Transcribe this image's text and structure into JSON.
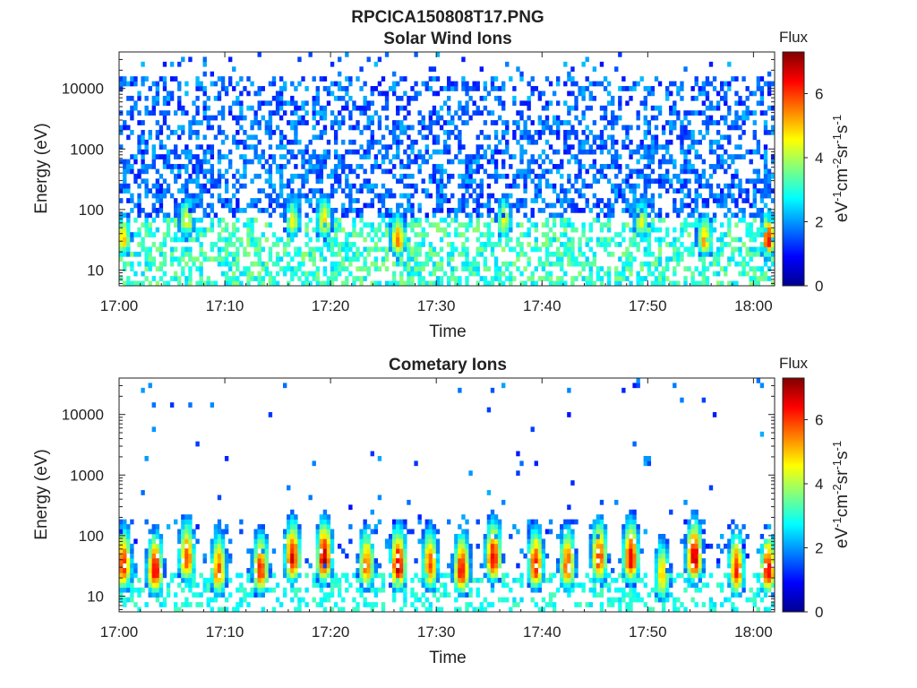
{
  "figure_title": "RPCICA150808T17.PNG",
  "chart_data": [
    {
      "type": "heatmap",
      "title": "Solar Wind Ions",
      "xlabel": "Time",
      "ylabel": "Energy (eV)",
      "x_range": [
        "17:00",
        "18:02"
      ],
      "x_ticks": [
        "17:00",
        "17:10",
        "17:20",
        "17:30",
        "17:40",
        "17:50",
        "18:00"
      ],
      "y_scale": "log",
      "y_range": [
        5.5,
        40000
      ],
      "y_ticks": [
        "10",
        "100",
        "1000",
        "10000"
      ],
      "colorbar": {
        "title": "Flux",
        "label": "eV-1cm-2sr-1s-1",
        "range": [
          0,
          7.3
        ],
        "ticks": [
          "0",
          "2",
          "4",
          "6"
        ]
      },
      "colormap": "jet",
      "features": {
        "background_flux": 1.2,
        "low_energy_band_flux": [
          2.5,
          4.5
        ],
        "sparse_high_energy_counts": true,
        "bursts": [
          {
            "time": "17:00",
            "peak_energy_eV": 30,
            "peak_flux": 5.0
          },
          {
            "time": "17:06",
            "peak_energy_eV": 60,
            "peak_flux": 4.6
          },
          {
            "time": "17:16",
            "peak_energy_eV": 60,
            "peak_flux": 4.4
          },
          {
            "time": "17:19",
            "peak_energy_eV": 60,
            "peak_flux": 5.0
          },
          {
            "time": "17:26",
            "peak_energy_eV": 30,
            "peak_flux": 5.6
          },
          {
            "time": "17:36",
            "peak_energy_eV": 60,
            "peak_flux": 4.4
          },
          {
            "time": "17:49",
            "peak_energy_eV": 60,
            "peak_flux": 4.3
          },
          {
            "time": "17:55",
            "peak_energy_eV": 30,
            "peak_flux": 5.2
          },
          {
            "time": "18:01",
            "peak_energy_eV": 30,
            "peak_flux": 6.3
          }
        ]
      }
    },
    {
      "type": "heatmap",
      "title": "Cometary Ions",
      "xlabel": "Time",
      "ylabel": "Energy (eV)",
      "x_range": [
        "17:00",
        "18:02"
      ],
      "x_ticks": [
        "17:00",
        "17:10",
        "17:20",
        "17:30",
        "17:40",
        "17:50",
        "18:00"
      ],
      "y_scale": "log",
      "y_range": [
        5.5,
        40000
      ],
      "y_ticks": [
        "10",
        "100",
        "1000",
        "10000"
      ],
      "colorbar": {
        "title": "Flux",
        "label": "eV-1cm-2sr-1s-1",
        "range": [
          0,
          7.3
        ],
        "ticks": [
          "0",
          "2",
          "4",
          "6"
        ]
      },
      "colormap": "jet",
      "features": {
        "background_flux": 1.2,
        "sparse_high_energy_counts": true,
        "bursts": [
          {
            "time": "17:00",
            "peak_energy_eV": 30,
            "peak_flux": 6.4
          },
          {
            "time": "17:03",
            "peak_energy_eV": 25,
            "peak_flux": 6.5
          },
          {
            "time": "17:06",
            "peak_energy_eV": 40,
            "peak_flux": 6.0
          },
          {
            "time": "17:09",
            "peak_energy_eV": 25,
            "peak_flux": 5.8
          },
          {
            "time": "17:13",
            "peak_energy_eV": 25,
            "peak_flux": 6.2
          },
          {
            "time": "17:16",
            "peak_energy_eV": 40,
            "peak_flux": 6.6
          },
          {
            "time": "17:19",
            "peak_energy_eV": 40,
            "peak_flux": 6.9
          },
          {
            "time": "17:23",
            "peak_energy_eV": 30,
            "peak_flux": 5.6
          },
          {
            "time": "17:26",
            "peak_energy_eV": 30,
            "peak_flux": 6.9
          },
          {
            "time": "17:29",
            "peak_energy_eV": 30,
            "peak_flux": 5.9
          },
          {
            "time": "17:32",
            "peak_energy_eV": 25,
            "peak_flux": 6.4
          },
          {
            "time": "17:35",
            "peak_energy_eV": 40,
            "peak_flux": 6.6
          },
          {
            "time": "17:39",
            "peak_energy_eV": 30,
            "peak_flux": 6.3
          },
          {
            "time": "17:42",
            "peak_energy_eV": 30,
            "peak_flux": 6.0
          },
          {
            "time": "17:45",
            "peak_energy_eV": 40,
            "peak_flux": 6.2
          },
          {
            "time": "17:48",
            "peak_energy_eV": 40,
            "peak_flux": 6.6
          },
          {
            "time": "17:51",
            "peak_energy_eV": 20,
            "peak_flux": 5.0
          },
          {
            "time": "17:54",
            "peak_energy_eV": 40,
            "peak_flux": 6.9
          },
          {
            "time": "17:58",
            "peak_energy_eV": 25,
            "peak_flux": 6.2
          },
          {
            "time": "18:01",
            "peak_energy_eV": 25,
            "peak_flux": 6.5
          }
        ]
      }
    }
  ]
}
